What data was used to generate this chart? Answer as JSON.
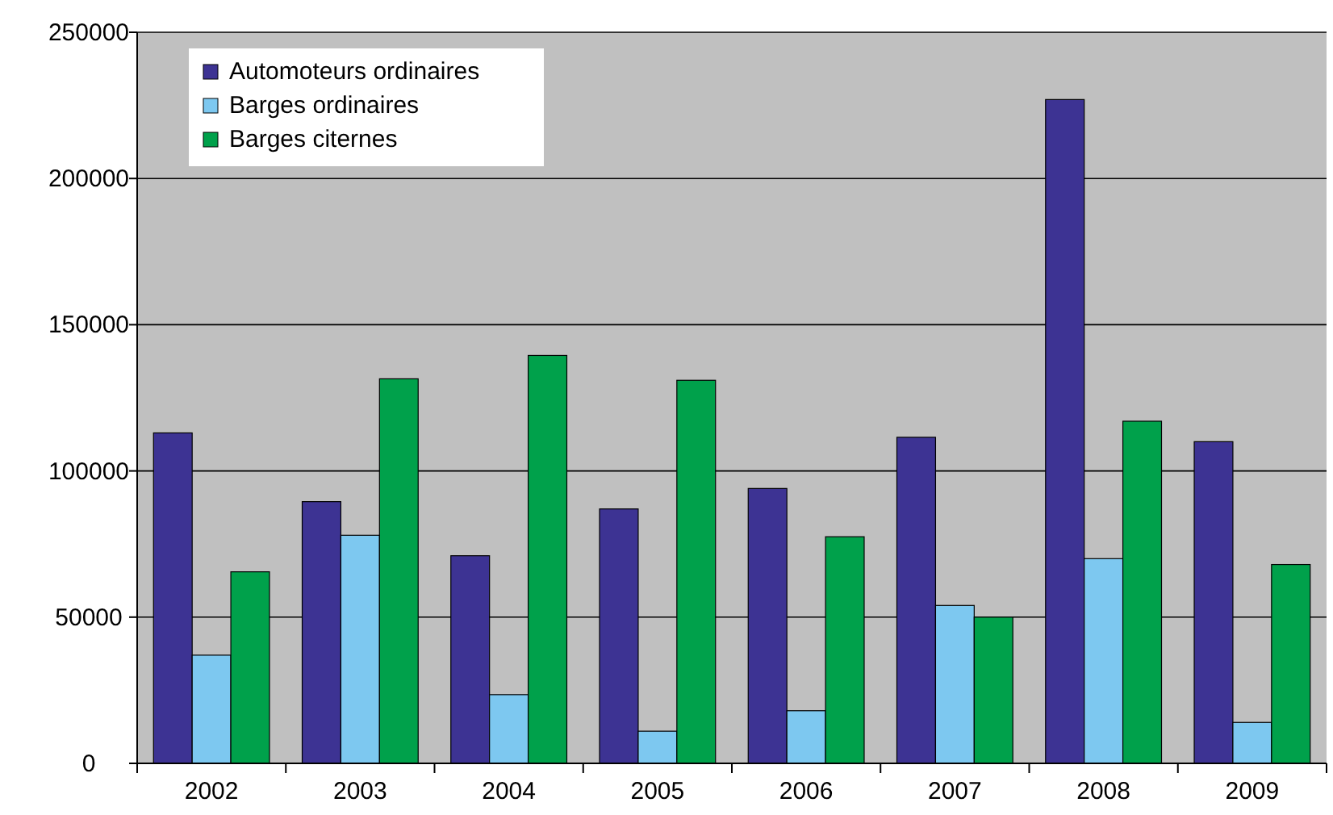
{
  "chart_data": {
    "type": "bar",
    "categories": [
      "2002",
      "2003",
      "2004",
      "2005",
      "2006",
      "2007",
      "2008",
      "2009"
    ],
    "series": [
      {
        "name": "Automoteurs ordinaires",
        "color": "#3d3393",
        "values": [
          113000,
          89500,
          71000,
          87000,
          94000,
          111500,
          227000,
          110000
        ]
      },
      {
        "name": "Barges ordinaires",
        "color": "#7dc8f0",
        "values": [
          37000,
          78000,
          23500,
          11000,
          18000,
          54000,
          70000,
          14000
        ]
      },
      {
        "name": "Barges citernes",
        "color": "#00a14b",
        "values": [
          65500,
          131500,
          139500,
          131000,
          77500,
          50000,
          117000,
          68000
        ]
      }
    ],
    "ylim": [
      0,
      250000
    ],
    "yticks": [
      0,
      50000,
      100000,
      150000,
      200000,
      250000
    ],
    "grid": "y",
    "legend": "top left"
  }
}
